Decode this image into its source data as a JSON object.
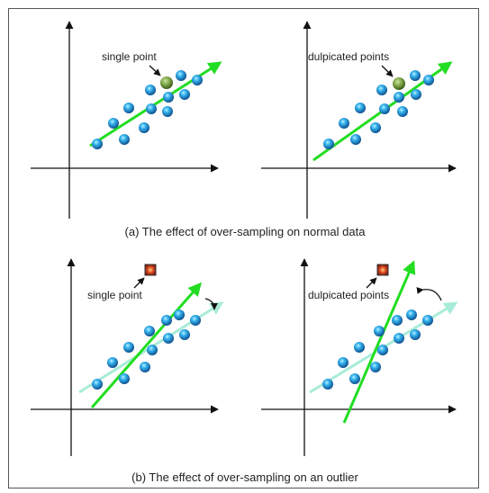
{
  "panels": {
    "top_left": {
      "label": "single point"
    },
    "top_right": {
      "label": "dulpicated points"
    },
    "bottom_left": {
      "label": "single point"
    },
    "bottom_right": {
      "label": "dulpicated points"
    }
  },
  "captions": {
    "a": "(a) The effect of over-sampling on normal data",
    "b": "(b) The effect of over-sampling on an outlier"
  },
  "colors": {
    "point_blue": "#1f8fd8",
    "point_green": "#6b9a3a",
    "point_red": "#c0392b",
    "trend_green": "#22dd22",
    "trend_faded": "#a8ecd8",
    "axis": "#111111"
  }
}
